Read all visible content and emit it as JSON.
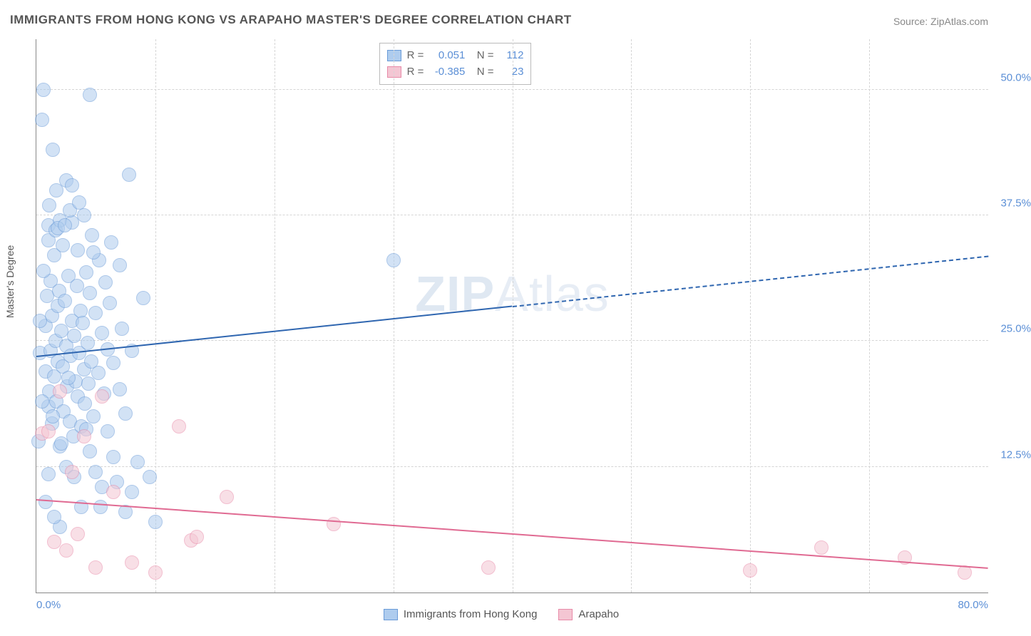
{
  "title": "IMMIGRANTS FROM HONG KONG VS ARAPAHO MASTER'S DEGREE CORRELATION CHART",
  "source": "Source: ZipAtlas.com",
  "watermark_a": "ZIP",
  "watermark_b": "Atlas",
  "ylabel": "Master's Degree",
  "xlim": [
    0,
    80
  ],
  "ylim": [
    0,
    55
  ],
  "xticks": [
    {
      "v": 0,
      "label": "0.0%"
    },
    {
      "v": 80,
      "label": "80.0%"
    }
  ],
  "yticks": [
    {
      "v": 12.5,
      "label": "12.5%"
    },
    {
      "v": 25.0,
      "label": "25.0%"
    },
    {
      "v": 37.5,
      "label": "37.5%"
    },
    {
      "v": 50.0,
      "label": "50.0%"
    }
  ],
  "grid_v": [
    10,
    20,
    30,
    40,
    50,
    60,
    70
  ],
  "series": [
    {
      "name": "Immigrants from Hong Kong",
      "fill": "#aeccee",
      "stroke": "#6a9bd8",
      "opacity": 0.55,
      "marker_r": 10,
      "R": "0.051",
      "N": "112",
      "trend": {
        "x1": 0,
        "y1": 23.5,
        "x2": 80,
        "y2": 33.5,
        "solid_until_x": 40,
        "color": "#2f66b0",
        "width": 2.5
      },
      "points": [
        [
          0.2,
          15.0
        ],
        [
          0.3,
          23.8
        ],
        [
          0.5,
          47.0
        ],
        [
          0.6,
          50.0
        ],
        [
          0.8,
          22.0
        ],
        [
          0.8,
          26.5
        ],
        [
          0.9,
          29.5
        ],
        [
          1.0,
          18.5
        ],
        [
          1.0,
          35.0
        ],
        [
          1.0,
          36.5
        ],
        [
          1.1,
          20.0
        ],
        [
          1.2,
          31.0
        ],
        [
          1.2,
          24.0
        ],
        [
          1.3,
          16.8
        ],
        [
          1.3,
          27.5
        ],
        [
          1.4,
          44.0
        ],
        [
          1.5,
          21.5
        ],
        [
          1.5,
          33.5
        ],
        [
          1.6,
          25.0
        ],
        [
          1.6,
          36.0
        ],
        [
          1.7,
          19.0
        ],
        [
          1.8,
          23.0
        ],
        [
          1.8,
          28.5
        ],
        [
          1.9,
          30.0
        ],
        [
          2.0,
          37.0
        ],
        [
          2.0,
          14.5
        ],
        [
          2.1,
          26.0
        ],
        [
          2.2,
          22.5
        ],
        [
          2.2,
          34.5
        ],
        [
          2.3,
          18.0
        ],
        [
          2.4,
          29.0
        ],
        [
          2.5,
          24.5
        ],
        [
          2.5,
          41.0
        ],
        [
          2.6,
          20.5
        ],
        [
          2.7,
          31.5
        ],
        [
          2.8,
          17.0
        ],
        [
          2.9,
          23.5
        ],
        [
          3.0,
          27.0
        ],
        [
          3.0,
          36.8
        ],
        [
          3.1,
          15.5
        ],
        [
          3.2,
          25.5
        ],
        [
          3.3,
          21.0
        ],
        [
          3.4,
          30.5
        ],
        [
          3.5,
          19.5
        ],
        [
          3.5,
          34.0
        ],
        [
          3.6,
          23.8
        ],
        [
          3.7,
          28.0
        ],
        [
          3.8,
          16.5
        ],
        [
          3.9,
          26.8
        ],
        [
          4.0,
          22.2
        ],
        [
          4.0,
          37.5
        ],
        [
          4.1,
          18.8
        ],
        [
          4.2,
          31.8
        ],
        [
          4.3,
          24.8
        ],
        [
          4.4,
          20.8
        ],
        [
          4.5,
          29.8
        ],
        [
          4.5,
          14.0
        ],
        [
          4.6,
          23.0
        ],
        [
          4.7,
          35.5
        ],
        [
          4.8,
          17.5
        ],
        [
          5.0,
          27.8
        ],
        [
          5.0,
          12.0
        ],
        [
          5.2,
          21.8
        ],
        [
          5.3,
          33.0
        ],
        [
          5.5,
          25.8
        ],
        [
          5.5,
          10.5
        ],
        [
          5.7,
          19.8
        ],
        [
          5.8,
          30.8
        ],
        [
          6.0,
          16.0
        ],
        [
          6.0,
          24.2
        ],
        [
          6.2,
          28.8
        ],
        [
          6.5,
          13.5
        ],
        [
          6.5,
          22.8
        ],
        [
          6.8,
          11.0
        ],
        [
          7.0,
          20.2
        ],
        [
          7.0,
          32.5
        ],
        [
          7.2,
          26.2
        ],
        [
          7.5,
          17.8
        ],
        [
          7.8,
          41.5
        ],
        [
          8.0,
          24.0
        ],
        [
          8.0,
          10.0
        ],
        [
          8.5,
          13.0
        ],
        [
          9.0,
          29.3
        ],
        [
          9.5,
          11.5
        ],
        [
          10.0,
          7.0
        ],
        [
          4.5,
          49.5
        ],
        [
          3.0,
          40.5
        ],
        [
          2.0,
          6.5
        ],
        [
          1.5,
          7.5
        ],
        [
          1.0,
          11.8
        ],
        [
          0.8,
          9.0
        ],
        [
          3.8,
          8.5
        ],
        [
          2.5,
          12.5
        ],
        [
          1.8,
          36.2
        ],
        [
          2.8,
          38.0
        ],
        [
          0.5,
          19.0
        ],
        [
          0.3,
          27.0
        ],
        [
          0.6,
          32.0
        ],
        [
          1.1,
          38.5
        ],
        [
          1.4,
          17.5
        ],
        [
          1.7,
          40.0
        ],
        [
          2.1,
          14.8
        ],
        [
          2.4,
          36.5
        ],
        [
          2.7,
          21.3
        ],
        [
          3.2,
          11.5
        ],
        [
          3.6,
          38.8
        ],
        [
          4.2,
          16.2
        ],
        [
          4.8,
          33.8
        ],
        [
          5.4,
          8.5
        ],
        [
          6.3,
          34.8
        ],
        [
          7.5,
          8.0
        ],
        [
          30.0,
          33.0
        ]
      ]
    },
    {
      "name": "Arapaho",
      "fill": "#f4c6d3",
      "stroke": "#e88aa8",
      "opacity": 0.55,
      "marker_r": 10,
      "R": "-0.385",
      "N": "23",
      "trend": {
        "x1": 0,
        "y1": 9.3,
        "x2": 80,
        "y2": 2.5,
        "solid_until_x": 80,
        "color": "#e06a92",
        "width": 2.5
      },
      "points": [
        [
          0.5,
          15.8
        ],
        [
          1.0,
          16.0
        ],
        [
          1.5,
          5.0
        ],
        [
          2.0,
          20.0
        ],
        [
          2.5,
          4.2
        ],
        [
          3.0,
          12.0
        ],
        [
          3.5,
          5.8
        ],
        [
          4.0,
          15.5
        ],
        [
          5.0,
          2.5
        ],
        [
          5.5,
          19.5
        ],
        [
          6.5,
          10.0
        ],
        [
          8.0,
          3.0
        ],
        [
          10.0,
          2.0
        ],
        [
          12.0,
          16.5
        ],
        [
          13.0,
          5.2
        ],
        [
          13.5,
          5.5
        ],
        [
          16.0,
          9.5
        ],
        [
          25.0,
          6.8
        ],
        [
          38.0,
          2.5
        ],
        [
          60.0,
          2.2
        ],
        [
          66.0,
          4.5
        ],
        [
          73.0,
          3.5
        ],
        [
          78.0,
          2.0
        ]
      ]
    }
  ]
}
